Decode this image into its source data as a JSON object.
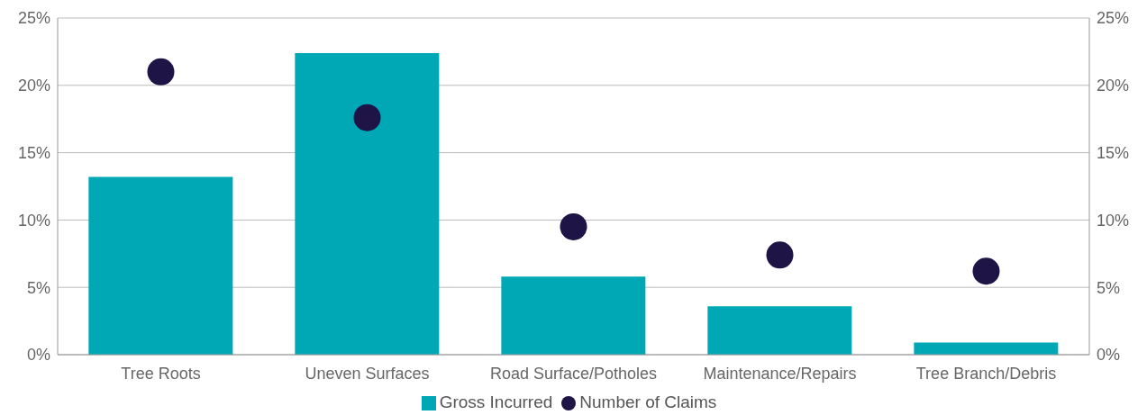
{
  "chart_data": {
    "type": "bar",
    "categories": [
      "Tree Roots",
      "Uneven Surfaces",
      "Road Surface/Potholes",
      "Maintenance/Repairs",
      "Tree Branch/Debris"
    ],
    "series": [
      {
        "name": "Gross Incurred",
        "type": "bar",
        "color": "#00a8b5",
        "values": [
          13.2,
          22.4,
          5.8,
          3.6,
          0.9
        ]
      },
      {
        "name": "Number of Claims",
        "type": "scatter",
        "color": "#1e1446",
        "x": [
          "Tree Roots",
          "Uneven Surfaces",
          "Road Surface/Potholes",
          "Maintenance/Repairs",
          "Tree Branch/Debris"
        ],
        "values": [
          21.0,
          17.6,
          9.5,
          7.4,
          6.2
        ]
      }
    ],
    "ylim": [
      0,
      25
    ],
    "yticks": [
      {
        "value": 0,
        "label": "0%"
      },
      {
        "value": 5,
        "label": "5%"
      },
      {
        "value": 10,
        "label": "10%"
      },
      {
        "value": 15,
        "label": "15%"
      },
      {
        "value": 20,
        "label": "20%"
      },
      {
        "value": 25,
        "label": "25%"
      }
    ],
    "y2lim": [
      0,
      25
    ],
    "y2ticks": [
      {
        "value": 0,
        "label": "0%"
      },
      {
        "value": 5,
        "label": "5%"
      },
      {
        "value": 10,
        "label": "10%"
      },
      {
        "value": 15,
        "label": "15%"
      },
      {
        "value": 20,
        "label": "20%"
      },
      {
        "value": 25,
        "label": "25%"
      }
    ],
    "grid": "y",
    "legend": "bottom",
    "marker": "circle"
  }
}
